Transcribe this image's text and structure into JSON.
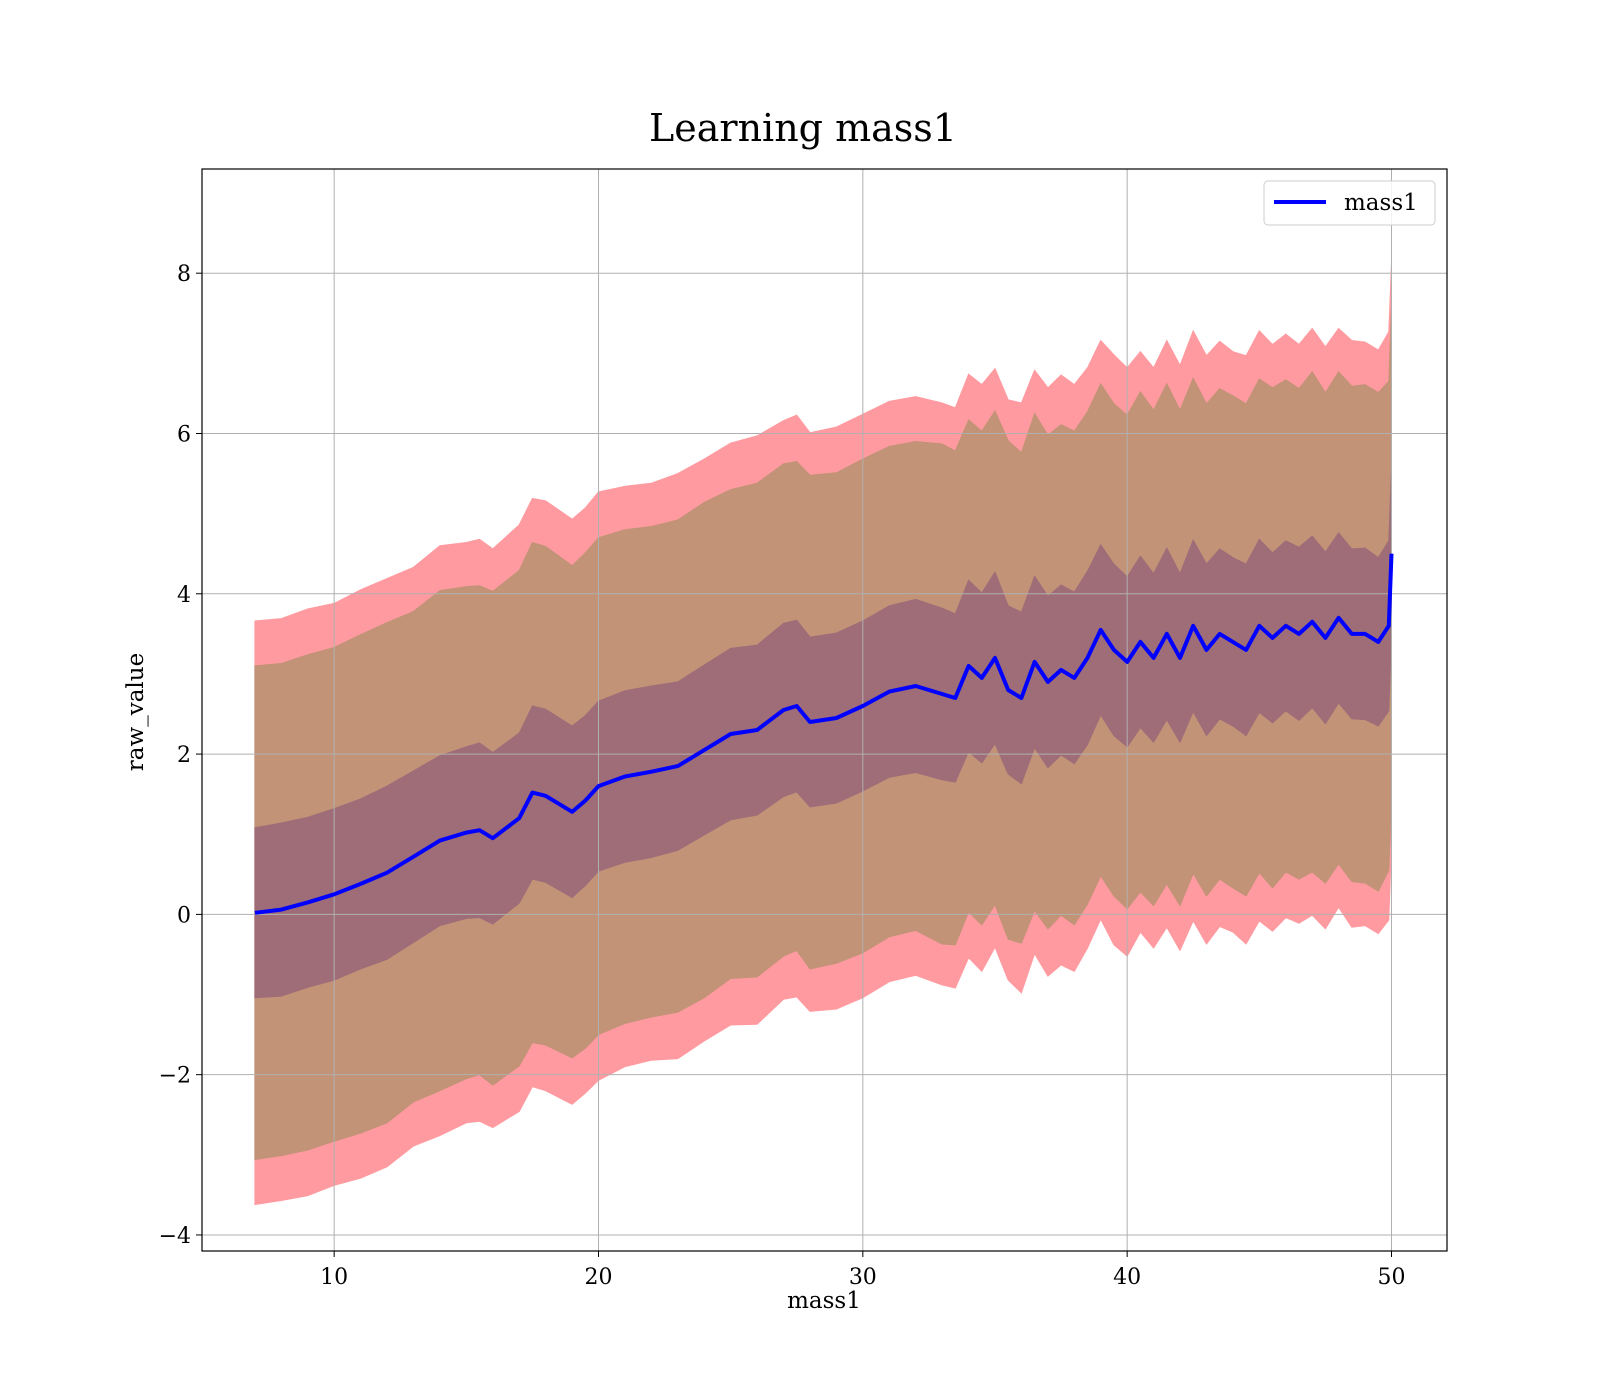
{
  "chart_data": {
    "type": "line",
    "title": "Learning mass1",
    "xlabel": "mass1",
    "ylabel": "raw_value",
    "xlim": [
      5.0,
      52.1
    ],
    "ylim": [
      -4.2,
      9.3
    ],
    "xticks": [
      10,
      20,
      30,
      40,
      50
    ],
    "xtick_labels": [
      "10",
      "20",
      "30",
      "40",
      "50"
    ],
    "yticks": [
      -4,
      -2,
      0,
      2,
      4,
      6,
      8
    ],
    "ytick_labels": [
      "−4",
      "−2",
      "0",
      "2",
      "4",
      "6",
      "8"
    ],
    "grid": true,
    "legend": {
      "position": "top-right",
      "entries": [
        "mass1"
      ]
    },
    "colors": {
      "line": "#0000ff",
      "band_3sigma": "#ff9aa0",
      "band_2sigma": "#c29377",
      "band_1sigma": "#9e6d78",
      "grid": "#b0b0b0"
    },
    "series": [
      {
        "name": "mass1",
        "x": [
          7,
          8,
          9,
          10,
          11,
          12,
          13,
          14,
          15,
          15.5,
          16,
          17,
          17.5,
          18,
          19,
          19.5,
          20,
          21,
          22,
          23,
          24,
          25,
          26,
          27,
          27.5,
          28,
          29,
          30,
          31,
          32,
          33,
          33.5,
          34,
          34.5,
          35,
          35.5,
          36,
          36.5,
          37,
          37.5,
          38,
          38.5,
          39,
          39.5,
          40,
          40.5,
          41,
          41.5,
          42,
          42.5,
          43,
          43.5,
          44,
          44.5,
          45,
          45.5,
          46,
          46.5,
          47,
          47.5,
          48,
          48.5,
          49,
          49.5,
          49.9,
          50
        ],
        "y": [
          0.02,
          0.06,
          0.15,
          0.25,
          0.38,
          0.52,
          0.72,
          0.92,
          1.02,
          1.05,
          0.95,
          1.2,
          1.52,
          1.48,
          1.28,
          1.42,
          1.6,
          1.72,
          1.78,
          1.85,
          2.05,
          2.25,
          2.3,
          2.55,
          2.6,
          2.4,
          2.45,
          2.6,
          2.78,
          2.85,
          2.75,
          2.7,
          3.1,
          2.95,
          3.2,
          2.8,
          2.7,
          3.15,
          2.9,
          3.05,
          2.95,
          3.2,
          3.55,
          3.3,
          3.15,
          3.4,
          3.2,
          3.5,
          3.2,
          3.6,
          3.3,
          3.5,
          3.4,
          3.3,
          3.6,
          3.45,
          3.6,
          3.5,
          3.65,
          3.45,
          3.7,
          3.5,
          3.5,
          3.4,
          3.6,
          4.5
        ]
      }
    ],
    "bands": [
      {
        "sigma": 3,
        "half_width": [
          3.64,
          3.63,
          3.66,
          3.63,
          3.67,
          3.67,
          3.61,
          3.68,
          3.62,
          3.63,
          3.61,
          3.66,
          3.67,
          3.68,
          3.65,
          3.65,
          3.67,
          3.62,
          3.6,
          3.65,
          3.63,
          3.63,
          3.67,
          3.61,
          3.63,
          3.61,
          3.63,
          3.64,
          3.62,
          3.61,
          3.63,
          3.62,
          3.64,
          3.66,
          3.61,
          3.62,
          3.68,
          3.64,
          3.67,
          3.68,
          3.66,
          3.62,
          3.61,
          3.68,
          3.67,
          3.62,
          3.62,
          3.66,
          3.65,
          3.68,
          3.67,
          3.65,
          3.62,
          3.67,
          3.68,
          3.66,
          3.64,
          3.61,
          3.66,
          3.63,
          3.61,
          3.66,
          3.64,
          3.64,
          3.67,
          3.63
        ]
      },
      {
        "sigma": 2,
        "half_width": [
          3.08,
          3.07,
          3.09,
          3.08,
          3.11,
          3.12,
          3.06,
          3.12,
          3.07,
          3.05,
          3.08,
          3.09,
          3.12,
          3.11,
          3.07,
          3.09,
          3.1,
          3.08,
          3.06,
          3.07,
          3.09,
          3.05,
          3.08,
          3.07,
          3.05,
          3.08,
          3.06,
          3.08,
          3.06,
          3.05,
          3.12,
          3.08,
          3.07,
          3.08,
          3.08,
          3.11,
          3.06,
          3.1,
          3.08,
          3.06,
          3.08,
          3.07,
          3.07,
          3.07,
          3.08,
          3.12,
          3.09,
          3.12,
          3.09,
          3.09,
          3.07,
          3.06,
          3.07,
          3.07,
          3.08,
          3.12,
          3.07,
          3.06,
          3.12,
          3.06,
          3.07,
          3.09,
          3.11,
          3.11,
          3.05,
          3.07
        ]
      },
      {
        "sigma": 1,
        "half_width": [
          1.06,
          1.08,
          1.06,
          1.07,
          1.06,
          1.08,
          1.07,
          1.06,
          1.07,
          1.09,
          1.07,
          1.06,
          1.08,
          1.08,
          1.07,
          1.06,
          1.06,
          1.07,
          1.07,
          1.05,
          1.06,
          1.07,
          1.06,
          1.08,
          1.07,
          1.06,
          1.06,
          1.06,
          1.07,
          1.08,
          1.07,
          1.05,
          1.07,
          1.06,
          1.07,
          1.05,
          1.07,
          1.07,
          1.07,
          1.06,
          1.07,
          1.08,
          1.06,
          1.07,
          1.06,
          1.07,
          1.05,
          1.07,
          1.05,
          1.07,
          1.07,
          1.06,
          1.05,
          1.07,
          1.08,
          1.06,
          1.06,
          1.08,
          1.07,
          1.07,
          1.06,
          1.06,
          1.07,
          1.05,
          1.06,
          1.06
        ]
      }
    ]
  }
}
